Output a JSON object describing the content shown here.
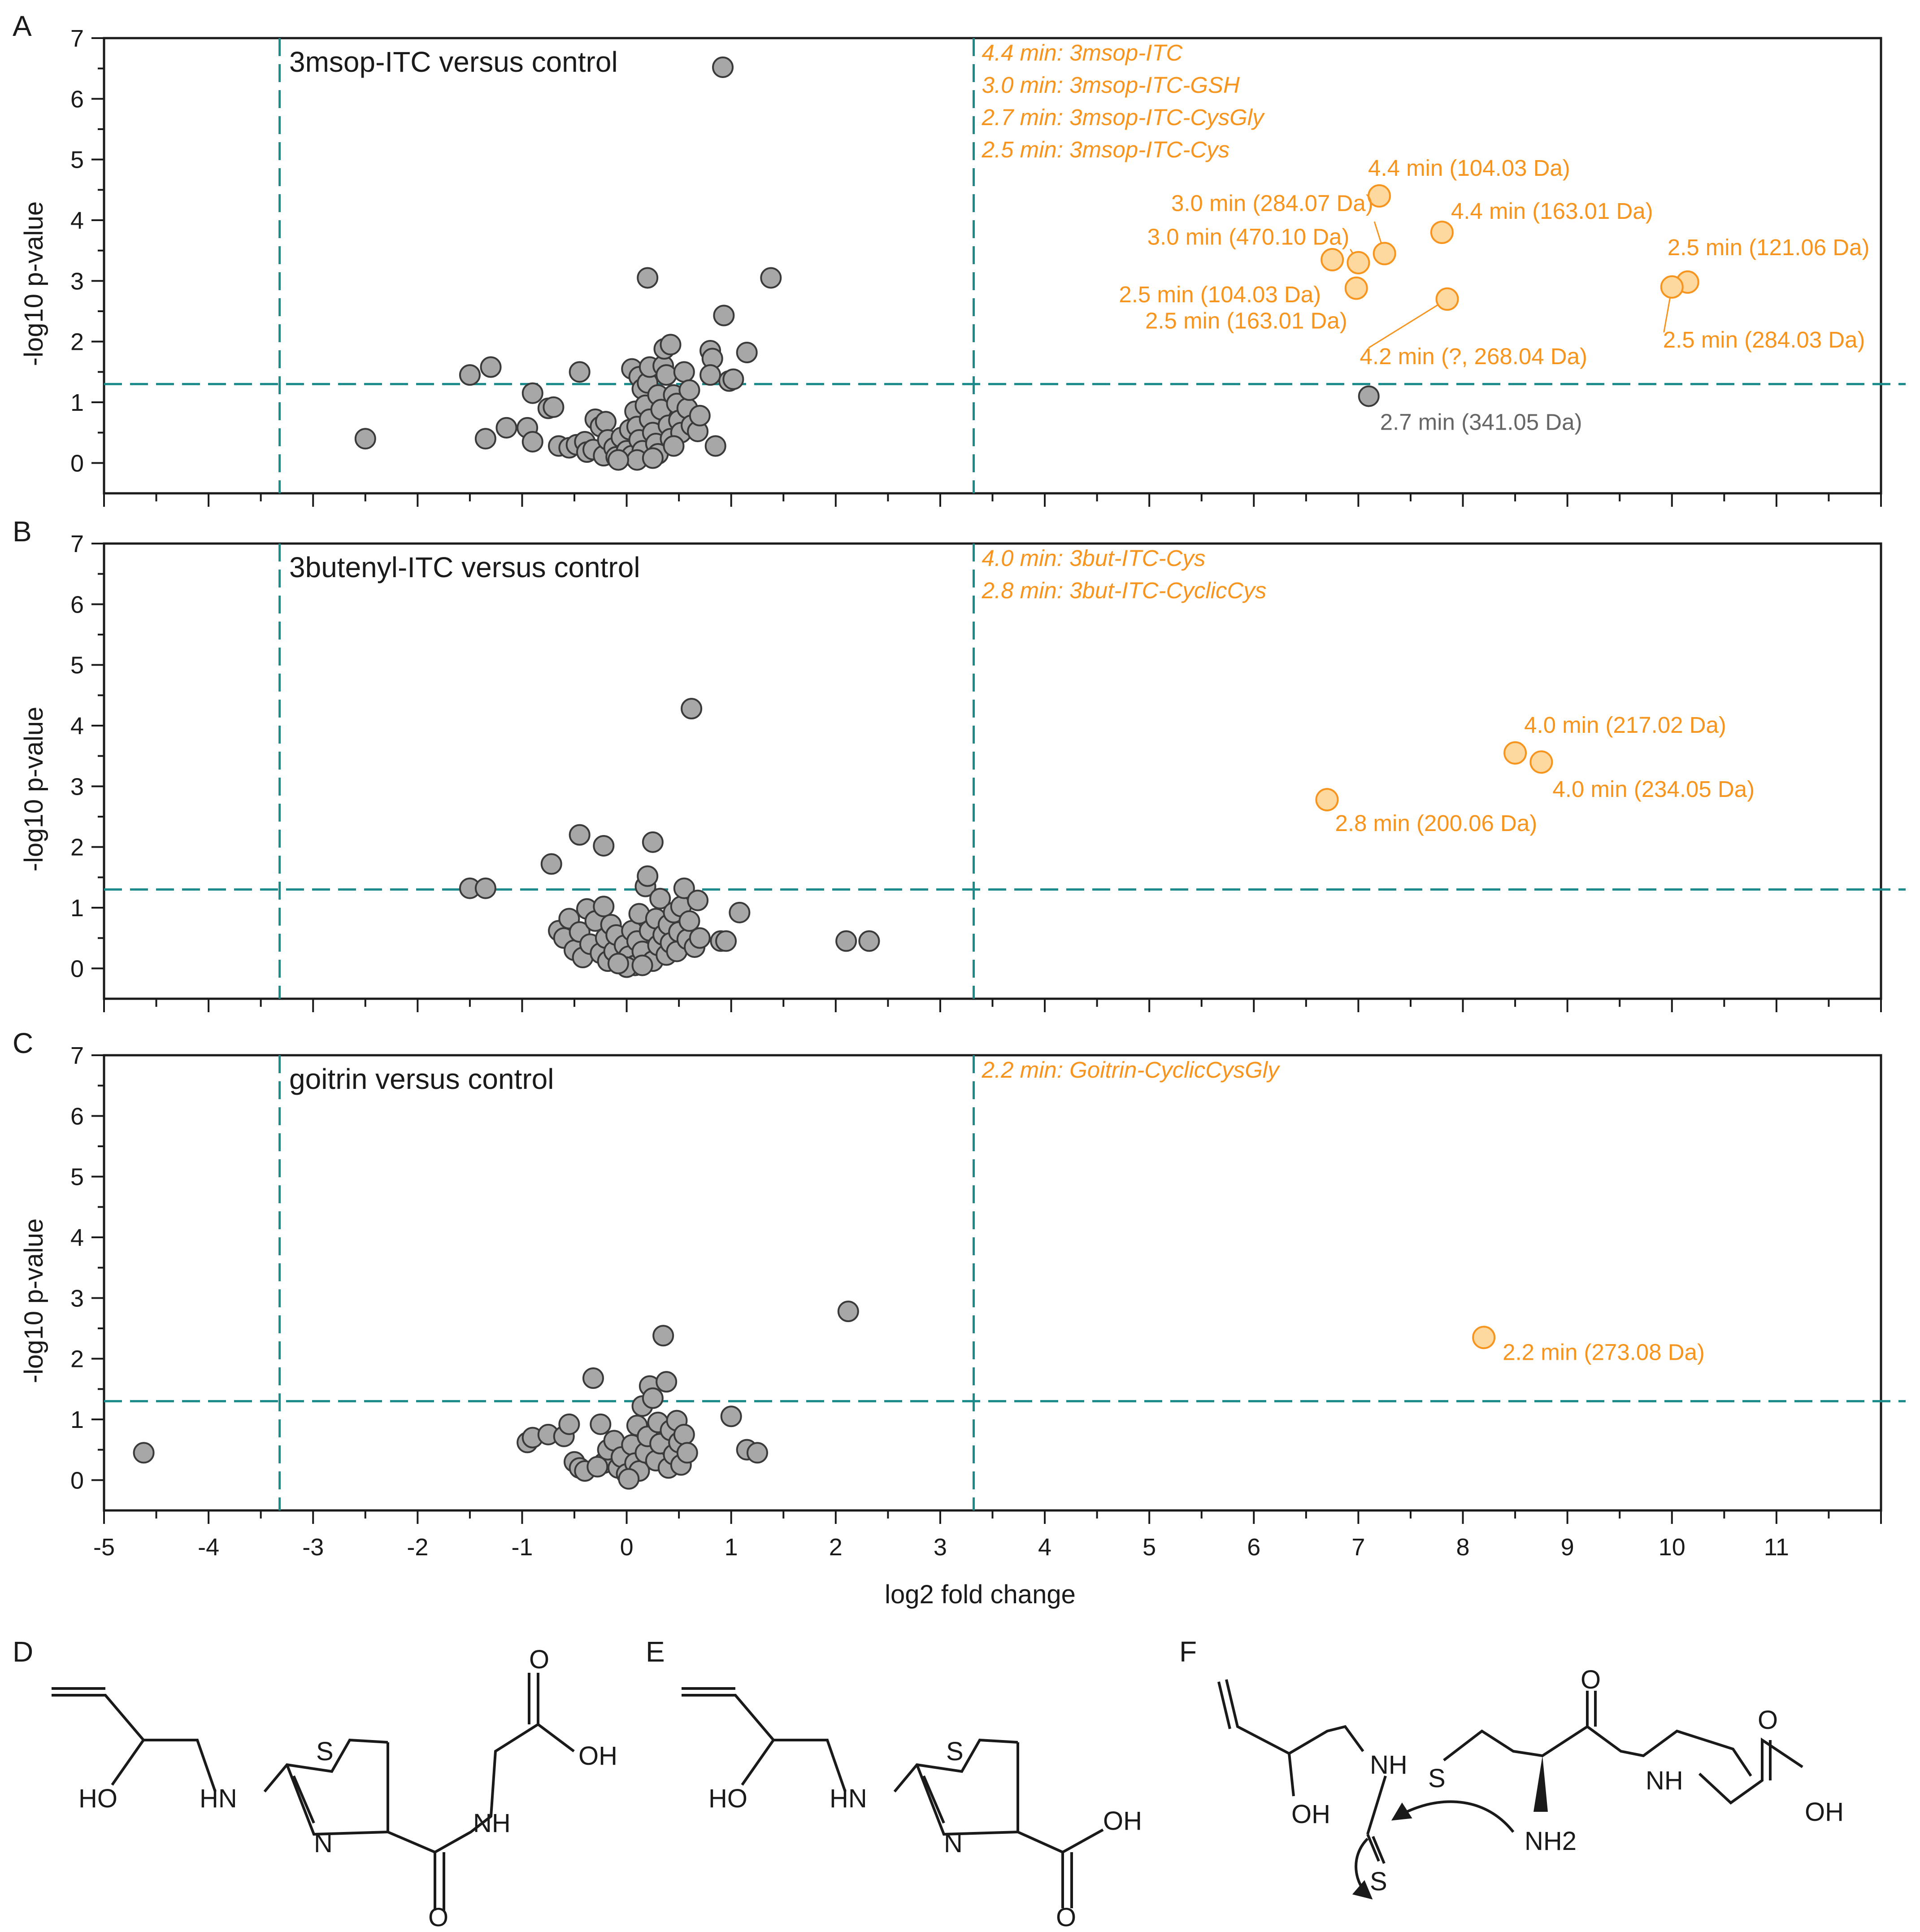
{
  "colors": {
    "orange": "#f7941d",
    "orange_fill": "#fdd9a0",
    "teal": "#1b8a8a",
    "grey_fill": "#a7a7a7",
    "grey_stroke": "#3a3a3a",
    "grey_label": "#666666"
  },
  "chart_data": {
    "type": "scatter",
    "xlabel": "log2 fold change",
    "ylabel": "-log10 p-value",
    "xlim": [
      -5,
      12
    ],
    "ylim": [
      -0.5,
      7
    ],
    "x_ticks": [
      "-5",
      "-4",
      "-3",
      "-2",
      "-1",
      "0",
      "1",
      "2",
      "3",
      "4",
      "5",
      "6",
      "7",
      "8",
      "9",
      "10",
      "11"
    ],
    "y_ticks": [
      "0",
      "1",
      "2",
      "3",
      "4",
      "5",
      "6",
      "7"
    ],
    "thresholds": {
      "x_low": -3.32,
      "x_high": 3.32,
      "y": 1.3
    },
    "panels": [
      {
        "letter": "A",
        "title": "3msop-ITC versus control",
        "annotations": [
          "4.4 min: 3msop-ITC",
          "3.0 min: 3msop-ITC-GSH",
          "2.7 min: 3msop-ITC-CysGly",
          "2.5 min: 3msop-ITC-Cys"
        ],
        "grey_points": [
          [
            -2.5,
            0.4
          ],
          [
            -1.5,
            1.45
          ],
          [
            -1.3,
            1.58
          ],
          [
            -1.35,
            0.4
          ],
          [
            -1.15,
            0.58
          ],
          [
            -0.9,
            1.15
          ],
          [
            -0.95,
            0.58
          ],
          [
            -0.9,
            0.35
          ],
          [
            -0.75,
            0.9
          ],
          [
            -0.7,
            0.92
          ],
          [
            -0.65,
            0.28
          ],
          [
            -0.55,
            0.25
          ],
          [
            -0.45,
            1.5
          ],
          [
            -0.48,
            0.3
          ],
          [
            -0.4,
            0.35
          ],
          [
            -0.38,
            0.18
          ],
          [
            -0.32,
            0.22
          ],
          [
            -0.3,
            0.72
          ],
          [
            -0.25,
            0.6
          ],
          [
            -0.22,
            0.12
          ],
          [
            -0.2,
            0.68
          ],
          [
            -0.18,
            0.38
          ],
          [
            -0.12,
            0.25
          ],
          [
            -0.1,
            0.1
          ],
          [
            -0.05,
            0.42
          ],
          [
            0.0,
            0.2
          ],
          [
            0.03,
            0.55
          ],
          [
            0.05,
            0.12
          ],
          [
            0.08,
            0.85
          ],
          [
            0.1,
            0.6
          ],
          [
            0.12,
            0.38
          ],
          [
            0.15,
            0.2
          ],
          [
            0.05,
            1.55
          ],
          [
            0.12,
            1.42
          ],
          [
            0.15,
            1.22
          ],
          [
            0.2,
            1.32
          ],
          [
            0.18,
            0.95
          ],
          [
            0.22,
            0.72
          ],
          [
            0.25,
            0.5
          ],
          [
            0.28,
            0.32
          ],
          [
            0.2,
            3.05
          ],
          [
            0.22,
            1.58
          ],
          [
            0.3,
            1.12
          ],
          [
            0.33,
            0.88
          ],
          [
            0.35,
            1.6
          ],
          [
            0.38,
            1.45
          ],
          [
            0.4,
            0.62
          ],
          [
            0.42,
            0.4
          ],
          [
            0.45,
            1.12
          ],
          [
            0.36,
            1.88
          ],
          [
            0.42,
            1.95
          ],
          [
            0.48,
            0.98
          ],
          [
            0.5,
            0.7
          ],
          [
            0.52,
            0.5
          ],
          [
            0.55,
            1.5
          ],
          [
            0.58,
            0.9
          ],
          [
            0.6,
            1.2
          ],
          [
            0.62,
            0.62
          ],
          [
            0.68,
            0.52
          ],
          [
            0.7,
            0.78
          ],
          [
            0.8,
            1.85
          ],
          [
            0.82,
            1.72
          ],
          [
            0.8,
            1.45
          ],
          [
            0.85,
            0.28
          ],
          [
            0.93,
            2.43
          ],
          [
            0.98,
            1.35
          ],
          [
            1.02,
            1.38
          ],
          [
            1.15,
            1.82
          ],
          [
            1.38,
            3.05
          ],
          [
            0.92,
            6.52
          ],
          [
            0.3,
            0.15
          ],
          [
            0.1,
            0.05
          ],
          [
            -0.08,
            0.05
          ],
          [
            0.25,
            0.08
          ],
          [
            0.45,
            0.28
          ]
        ],
        "grey_labeled": [
          {
            "x": 7.1,
            "y": 1.1,
            "label": "2.7 min (341.05 Da)"
          }
        ],
        "orange_points": [
          {
            "x": 7.2,
            "y": 4.4,
            "label": "4.4 min (104.03 Da)"
          },
          {
            "x": 7.25,
            "y": 3.45,
            "label": "3.0 min (284.07 Da)"
          },
          {
            "x": 7.0,
            "y": 3.3,
            "label": "3.0 min (470.10 Da)"
          },
          {
            "x": 6.75,
            "y": 3.35,
            "label": "2.5 min (104.03 Da)"
          },
          {
            "x": 6.98,
            "y": 2.88,
            "label": "2.5 min (163.01 Da)"
          },
          {
            "x": 7.8,
            "y": 3.8,
            "label": "4.4 min (163.01 Da)"
          },
          {
            "x": 7.85,
            "y": 2.7,
            "label": "4.2 min (?, 268.04 Da)"
          },
          {
            "x": 10.15,
            "y": 2.98,
            "label": "2.5 min (121.06 Da)"
          },
          {
            "x": 10.0,
            "y": 2.9,
            "label": "2.5 min (284.03 Da)"
          }
        ]
      },
      {
        "letter": "B",
        "title": "3butenyl-ITC versus control",
        "annotations": [
          "4.0 min: 3but-ITC-Cys",
          "2.8 min: 3but-ITC-CyclicCys"
        ],
        "grey_points": [
          [
            -1.5,
            1.32
          ],
          [
            -1.35,
            1.32
          ],
          [
            -0.72,
            1.72
          ],
          [
            -0.45,
            2.2
          ],
          [
            -0.22,
            2.02
          ],
          [
            0.25,
            2.08
          ],
          [
            0.62,
            4.28
          ],
          [
            -0.65,
            0.62
          ],
          [
            -0.6,
            0.5
          ],
          [
            -0.55,
            0.82
          ],
          [
            -0.5,
            0.3
          ],
          [
            -0.45,
            0.6
          ],
          [
            -0.42,
            0.18
          ],
          [
            -0.38,
            0.98
          ],
          [
            -0.35,
            0.4
          ],
          [
            -0.3,
            0.78
          ],
          [
            -0.25,
            0.25
          ],
          [
            -0.22,
            1.02
          ],
          [
            -0.2,
            0.5
          ],
          [
            -0.18,
            0.12
          ],
          [
            -0.15,
            0.72
          ],
          [
            -0.12,
            0.28
          ],
          [
            -0.1,
            0.55
          ],
          [
            -0.05,
            0.1
          ],
          [
            -0.02,
            0.38
          ],
          [
            0.02,
            0.2
          ],
          [
            0.05,
            0.62
          ],
          [
            0.08,
            0.05
          ],
          [
            0.1,
            0.45
          ],
          [
            0.12,
            0.9
          ],
          [
            0.15,
            0.28
          ],
          [
            0.18,
            1.35
          ],
          [
            0.2,
            1.52
          ],
          [
            0.22,
            0.62
          ],
          [
            0.25,
            0.12
          ],
          [
            0.28,
            0.82
          ],
          [
            0.3,
            0.38
          ],
          [
            0.32,
            1.15
          ],
          [
            0.35,
            0.55
          ],
          [
            0.38,
            0.22
          ],
          [
            0.4,
            0.72
          ],
          [
            0.42,
            0.42
          ],
          [
            0.45,
            0.92
          ],
          [
            0.48,
            0.28
          ],
          [
            0.5,
            0.6
          ],
          [
            0.52,
            1.02
          ],
          [
            0.55,
            1.32
          ],
          [
            0.58,
            0.48
          ],
          [
            0.6,
            0.78
          ],
          [
            0.65,
            0.35
          ],
          [
            0.68,
            1.12
          ],
          [
            0.7,
            0.5
          ],
          [
            0.9,
            0.45
          ],
          [
            0.95,
            0.45
          ],
          [
            1.08,
            0.92
          ],
          [
            2.1,
            0.45
          ],
          [
            2.32,
            0.45
          ],
          [
            0.0,
            0.02
          ],
          [
            -0.08,
            0.08
          ],
          [
            0.15,
            0.05
          ]
        ],
        "grey_labeled": [],
        "orange_points": [
          {
            "x": 8.5,
            "y": 3.55,
            "label": "4.0 min (217.02 Da)"
          },
          {
            "x": 8.75,
            "y": 3.4,
            "label": "4.0 min (234.05 Da)"
          },
          {
            "x": 6.7,
            "y": 2.78,
            "label": "2.8 min (200.06 Da)"
          }
        ]
      },
      {
        "letter": "C",
        "title": "goitrin versus control",
        "annotations": [
          "2.2 min: Goitrin-CyclicCysGly"
        ],
        "grey_points": [
          [
            -4.62,
            0.45
          ],
          [
            -0.95,
            0.62
          ],
          [
            -0.9,
            0.7
          ],
          [
            -0.75,
            0.75
          ],
          [
            -0.6,
            0.72
          ],
          [
            -0.55,
            0.92
          ],
          [
            -0.5,
            0.3
          ],
          [
            -0.45,
            0.2
          ],
          [
            -0.4,
            0.15
          ],
          [
            -0.32,
            1.68
          ],
          [
            -0.25,
            0.92
          ],
          [
            -0.22,
            0.28
          ],
          [
            -0.18,
            0.5
          ],
          [
            -0.12,
            0.65
          ],
          [
            -0.08,
            0.2
          ],
          [
            -0.05,
            0.38
          ],
          [
            0.0,
            0.1
          ],
          [
            0.05,
            0.58
          ],
          [
            0.08,
            0.28
          ],
          [
            0.1,
            0.9
          ],
          [
            0.12,
            0.15
          ],
          [
            0.15,
            1.22
          ],
          [
            0.18,
            0.45
          ],
          [
            0.2,
            0.72
          ],
          [
            0.22,
            1.55
          ],
          [
            0.25,
            1.35
          ],
          [
            0.28,
            0.32
          ],
          [
            0.3,
            0.95
          ],
          [
            0.32,
            0.6
          ],
          [
            0.35,
            2.38
          ],
          [
            0.38,
            1.62
          ],
          [
            0.4,
            0.2
          ],
          [
            0.42,
            0.82
          ],
          [
            0.45,
            0.42
          ],
          [
            0.48,
            0.98
          ],
          [
            0.5,
            0.62
          ],
          [
            0.52,
            0.25
          ],
          [
            0.55,
            0.75
          ],
          [
            0.58,
            0.45
          ],
          [
            1.0,
            1.05
          ],
          [
            1.15,
            0.5
          ],
          [
            1.25,
            0.45
          ],
          [
            2.12,
            2.78
          ],
          [
            -0.28,
            0.22
          ],
          [
            0.02,
            0.02
          ]
        ],
        "grey_labeled": [],
        "orange_points": [
          {
            "x": 8.2,
            "y": 2.35,
            "label": "2.2 min (273.08 Da)"
          }
        ]
      }
    ]
  },
  "structures": {
    "D": {
      "letter": "D",
      "labels": [
        "HO",
        "HN",
        "S",
        "N",
        "O",
        "OH",
        "NH",
        "O"
      ]
    },
    "E": {
      "letter": "E",
      "labels": [
        "HO",
        "HN",
        "S",
        "N",
        "OH",
        "O"
      ]
    },
    "F": {
      "letter": "F",
      "labels": [
        "OH",
        "NH",
        "S",
        "O",
        "NH",
        "O",
        "OH",
        "NH2",
        "S"
      ]
    }
  }
}
